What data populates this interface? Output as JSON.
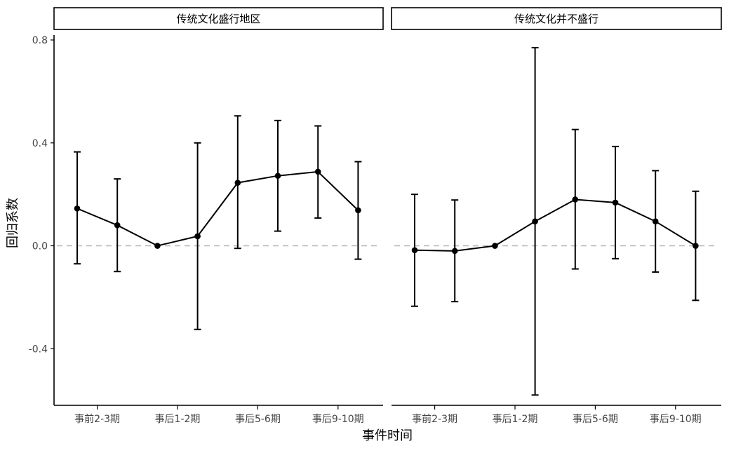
{
  "chart_data": {
    "type": "line",
    "xlabel": "事件时间",
    "ylabel": "回归系数",
    "ylim": [
      -0.62,
      0.83
    ],
    "yticks": [
      -0.4,
      0.0,
      0.4,
      0.8
    ],
    "ytick_labels": [
      "-0.4",
      "0.0",
      "0.4",
      "0.8"
    ],
    "x_positions": [
      1,
      2,
      3,
      4,
      5,
      6,
      7,
      8
    ],
    "xtick_positions": [
      1.5,
      3.5,
      5.5,
      7.5
    ],
    "xtick_labels": [
      "事前2-3期",
      "事后1-2期",
      "事后5-6期",
      "事后9-10期"
    ],
    "reference_line": 0,
    "grid": false,
    "panels": [
      {
        "title": "传统文化盛行地区",
        "points": [
          {
            "x": 1,
            "y": 0.145,
            "lower": -0.07,
            "upper": 0.365
          },
          {
            "x": 2,
            "y": 0.08,
            "lower": -0.1,
            "upper": 0.26
          },
          {
            "x": 3,
            "y": 0.0,
            "lower": null,
            "upper": null
          },
          {
            "x": 4,
            "y": 0.037,
            "lower": -0.325,
            "upper": 0.4
          },
          {
            "x": 5,
            "y": 0.245,
            "lower": -0.01,
            "upper": 0.505
          },
          {
            "x": 6,
            "y": 0.272,
            "lower": 0.057,
            "upper": 0.487
          },
          {
            "x": 7,
            "y": 0.288,
            "lower": 0.108,
            "upper": 0.466
          },
          {
            "x": 8,
            "y": 0.138,
            "lower": -0.052,
            "upper": 0.327
          }
        ]
      },
      {
        "title": "传统文化并不盛行",
        "points": [
          {
            "x": 1,
            "y": -0.017,
            "lower": -0.235,
            "upper": 0.2
          },
          {
            "x": 2,
            "y": -0.02,
            "lower": -0.217,
            "upper": 0.178
          },
          {
            "x": 3,
            "y": 0.0,
            "lower": null,
            "upper": null
          },
          {
            "x": 4,
            "y": 0.095,
            "lower": -0.58,
            "upper": 0.77
          },
          {
            "x": 5,
            "y": 0.18,
            "lower": -0.09,
            "upper": 0.452
          },
          {
            "x": 6,
            "y": 0.168,
            "lower": -0.05,
            "upper": 0.386
          },
          {
            "x": 7,
            "y": 0.095,
            "lower": -0.102,
            "upper": 0.292
          },
          {
            "x": 8,
            "y": 0.0,
            "lower": -0.212,
            "upper": 0.212
          }
        ]
      }
    ]
  }
}
